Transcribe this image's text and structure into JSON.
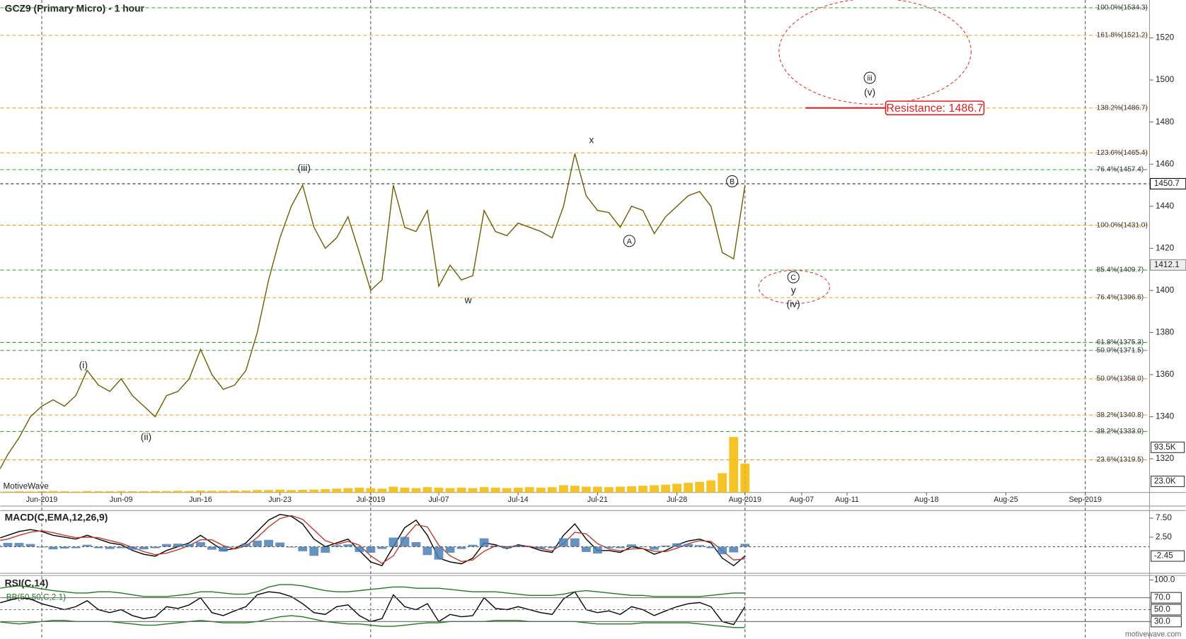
{
  "chart_data": [
    {
      "type": "line",
      "title": "GCZ9 (Primary Micro) - 1 hour",
      "categories": [
        null,
        null,
        null,
        null,
        "Jun-2019",
        null,
        null,
        null,
        null,
        null,
        null,
        "Jun-09",
        null,
        null,
        null,
        null,
        null,
        null,
        "Jun-16",
        null,
        null,
        null,
        null,
        null,
        null,
        "Jun-23",
        null,
        null,
        null,
        null,
        null,
        null,
        null,
        "Jul-2019",
        null,
        null,
        null,
        null,
        null,
        "Jul-07",
        null,
        null,
        null,
        null,
        null,
        null,
        "Jul-14",
        null,
        null,
        null,
        null,
        null,
        null,
        "Jul-21",
        null,
        null,
        null,
        null,
        null,
        null,
        "Jul-28",
        null,
        null,
        null,
        null,
        null,
        "Aug-2019",
        null,
        null,
        null,
        null,
        "Aug-07",
        null,
        null,
        null,
        "Aug-11",
        null,
        null,
        null,
        null,
        null,
        null,
        "Aug-18",
        null,
        null,
        null,
        null,
        null,
        null,
        "Aug-25",
        null,
        null,
        null,
        null,
        null,
        null,
        "Sep-2019",
        null,
        null,
        null,
        null,
        null
      ],
      "series": [
        {
          "color": "#6b5d00",
          "values": [
            1312,
            1322,
            1330,
            1340,
            1345,
            1348,
            1345,
            1350,
            1362,
            1355,
            1352,
            1358,
            1350,
            1345,
            1340,
            1350,
            1352,
            1358,
            1372,
            1360,
            1353,
            1355,
            1362,
            1380,
            1405,
            1425,
            1440,
            1450,
            1430,
            1420,
            1425,
            1435,
            1418,
            1400,
            1405,
            1450,
            1430,
            1428,
            1438,
            1402,
            1412,
            1405,
            1407,
            1438,
            1428,
            1426,
            1432,
            1430,
            1428,
            1425,
            1440,
            1465,
            1445,
            1438,
            1437,
            1430,
            1440,
            1438,
            1427,
            1435,
            1440,
            1445,
            1447,
            1440,
            1418,
            1415,
            1450,
            null,
            null,
            null,
            null,
            null,
            null,
            null,
            null,
            null,
            null,
            null,
            null,
            null,
            null,
            null,
            null,
            null,
            null,
            null,
            null,
            null,
            null,
            null,
            null,
            null,
            null,
            null,
            null,
            null,
            null,
            null,
            null,
            null,
            null,
            null
          ]
        },
        {
          "type": "bar",
          "axis": "y2",
          "color": "#f5b800",
          "values": [
            2000,
            2000,
            2500,
            2000,
            2500,
            3000,
            2500,
            2000,
            3000,
            2500,
            2500,
            3000,
            2500,
            2500,
            3000,
            3000,
            3500,
            3000,
            4000,
            3500,
            3500,
            4000,
            4000,
            5000,
            5000,
            6000,
            5000,
            5500,
            6000,
            7000,
            8000,
            9000,
            10000,
            9000,
            8000,
            12000,
            10000,
            9000,
            11000,
            10000,
            9000,
            10000,
            9000,
            11000,
            10000,
            9000,
            10000,
            11000,
            10000,
            11000,
            15000,
            14000,
            12000,
            12000,
            11000,
            12000,
            13000,
            14000,
            15000,
            16000,
            18000,
            20000,
            22000,
            25000,
            40000,
            115000,
            60000,
            null,
            null,
            null,
            null,
            null,
            null,
            null,
            null,
            null,
            null,
            null,
            null,
            null,
            null,
            null,
            null,
            null,
            null,
            null,
            null,
            null,
            null,
            null,
            null,
            null,
            null,
            null,
            null,
            null,
            null,
            null,
            null,
            null,
            null,
            null
          ]
        }
      ],
      "ylim": [
        1304,
        1538
      ],
      "yticks": [
        1320,
        1340,
        1360,
        1380,
        1400,
        1420,
        1440,
        1460,
        1480,
        1500,
        1520
      ],
      "y2lim": [
        0,
        1020000
      ],
      "y2ticks": [
        {
          "value": 23000,
          "label": "23.0K"
        },
        {
          "value": 93500,
          "label": "93.5K"
        }
      ],
      "levels": [
        {
          "label": "100.0%(1534.3)",
          "value": 1534.3,
          "color": "#2aa52a"
        },
        {
          "label": "161.8%(1521.2)",
          "value": 1521.2,
          "color": "#e8a020"
        },
        {
          "label": "138.2%(1486.7)",
          "value": 1486.7,
          "color": "#e8a020"
        },
        {
          "label": "123.6%(1465.4)",
          "value": 1465.4,
          "color": "#e8a020"
        },
        {
          "label": "76.4%(1457.4)",
          "value": 1457.4,
          "color": "#2aa52a"
        },
        {
          "label": "100.0%(1431.0)",
          "value": 1431.0,
          "color": "#e8a020"
        },
        {
          "label": "85.4%(1409.7)",
          "value": 1409.7,
          "color": "#2aa52a"
        },
        {
          "label": "76.4%(1396.6)",
          "value": 1396.6,
          "color": "#e8a020"
        },
        {
          "label": "61.8%(1375.3)",
          "value": 1375.3,
          "color": "#2aa52a"
        },
        {
          "label": "50.0%(1371.5)",
          "value": 1371.5,
          "color": "#2aa52a"
        },
        {
          "label": "50.0%(1358.0)",
          "value": 1358.0,
          "color": "#e8a020"
        },
        {
          "label": "38.2%(1340.8)",
          "value": 1340.8,
          "color": "#e8a020"
        },
        {
          "label": "38.2%(1333.0)",
          "value": 1333.0,
          "color": "#2aa52a"
        },
        {
          "label": "23.6%(1319.5)",
          "value": 1319.5,
          "color": "#e8a020"
        }
      ],
      "last_price": 1450.7,
      "prev_price": 1412.1,
      "resistance": {
        "label": "Resistance: 1486.7",
        "value": 1486.7,
        "color": "#e02020"
      },
      "annotations": [
        "(i)",
        "(ii)",
        "(iii)",
        "w",
        "x",
        "A",
        "B",
        "C",
        "y",
        "(iv)",
        "iii",
        "(v)"
      ],
      "watermark": "MotiveWave"
    },
    {
      "type": "line",
      "title": "MACD(C,EMA,12,26,9)",
      "ylim": [
        -6.8,
        9.3
      ],
      "yticks": [
        {
          "value": 7.5,
          "label": "7.50"
        },
        {
          "value": 2.5,
          "label": "2.50"
        }
      ],
      "last_value": -2.45,
      "series": [
        {
          "color": "#000000",
          "values": [
            2,
            3,
            4,
            4.5,
            4,
            3,
            2.5,
            2,
            3,
            2,
            1,
            0.5,
            -1,
            -2,
            -2.5,
            -1,
            0,
            1,
            3,
            1,
            -1,
            -0.5,
            1,
            4,
            7,
            8.5,
            8,
            6,
            2,
            0,
            1,
            2,
            -1,
            -4,
            -5,
            0,
            5,
            7,
            3,
            -3,
            -4,
            -4.5,
            -3,
            1,
            0.5,
            -0.5,
            0.5,
            0,
            -1,
            -1.5,
            3,
            6,
            2,
            -1,
            -1,
            -1.5,
            0,
            -0.5,
            -2,
            -1,
            0.5,
            1.5,
            2,
            1,
            -3,
            -5,
            -2.45
          ]
        },
        {
          "color": "#c0392b",
          "values": [
            1.5,
            2,
            3,
            3.8,
            4.2,
            3.7,
            3,
            2.4,
            2.5,
            2.4,
            1.6,
            0.9,
            -0.2,
            -1.3,
            -2.1,
            -1.7,
            -0.8,
            0.3,
            1.8,
            1.8,
            0.3,
            -0.6,
            0.2,
            2.4,
            5.2,
            7.4,
            8.2,
            7.2,
            4.4,
            1.6,
            0.6,
            1.4,
            0.4,
            -2.4,
            -4.4,
            -2.4,
            2.4,
            5.8,
            5.2,
            0.4,
            -2.4,
            -3.9,
            -3.5,
            -1.2,
            0.2,
            0,
            0.1,
            0.1,
            -0.5,
            -1.1,
            0.8,
            3.8,
            3.4,
            0.8,
            -0.6,
            -1.1,
            -0.6,
            -0.5,
            -1.2,
            -1.3,
            -0.4,
            0.8,
            1.6,
            1.4,
            -1,
            -3.5,
            -3.2
          ]
        },
        {
          "type": "bar",
          "color": "#4a7fb5",
          "values": [
            0.5,
            1,
            1,
            0.7,
            -0.2,
            -0.7,
            -0.5,
            -0.4,
            0.5,
            -0.4,
            -0.6,
            -0.4,
            -0.8,
            -0.7,
            -0.4,
            0.7,
            0.8,
            0.7,
            1.2,
            -0.8,
            -1.3,
            0.1,
            0.8,
            1.6,
            1.8,
            1.1,
            -0.2,
            -1.2,
            -2.4,
            -1.6,
            0.4,
            0.6,
            -1.4,
            -1.6,
            -0.6,
            2.4,
            2.6,
            1.2,
            -2.2,
            -3.4,
            -1.6,
            -0.6,
            0.5,
            2.2,
            0.3,
            -0.5,
            0.4,
            -0.1,
            -0.5,
            -0.4,
            2.2,
            2.2,
            -1.4,
            -1.8,
            -0.4,
            -0.4,
            0.6,
            0,
            -0.8,
            0.3,
            0.9,
            0.7,
            0.4,
            -0.4,
            -2,
            -1.5,
            0.75
          ]
        }
      ]
    },
    {
      "type": "line",
      "title": "RSI(C,14)",
      "subtitle": "BB(50,50,C,2.1)",
      "ylim": [
        2,
        106
      ],
      "yticks": [
        {
          "value": 100,
          "label": "100.0"
        },
        {
          "value": 70,
          "label": "70.0"
        },
        {
          "value": 50,
          "label": "50.0"
        },
        {
          "value": 30,
          "label": "30.0"
        }
      ],
      "series": [
        {
          "color": "#000000",
          "values": [
            60,
            65,
            70,
            68,
            60,
            55,
            50,
            55,
            65,
            50,
            45,
            50,
            40,
            35,
            38,
            55,
            52,
            58,
            70,
            45,
            40,
            48,
            55,
            75,
            80,
            78,
            72,
            60,
            45,
            42,
            55,
            58,
            40,
            30,
            35,
            75,
            55,
            50,
            60,
            30,
            42,
            38,
            40,
            70,
            52,
            50,
            55,
            50,
            45,
            42,
            68,
            80,
            50,
            45,
            48,
            42,
            55,
            50,
            40,
            48,
            55,
            60,
            62,
            55,
            30,
            25,
            55
          ]
        },
        {
          "color": "#1f7a1f",
          "values": [
            85,
            88,
            90,
            88,
            85,
            82,
            80,
            78,
            78,
            80,
            80,
            78,
            75,
            72,
            72,
            72,
            74,
            76,
            80,
            80,
            78,
            76,
            76,
            80,
            88,
            92,
            92,
            90,
            86,
            82,
            80,
            80,
            82,
            84,
            86,
            88,
            88,
            86,
            86,
            86,
            84,
            82,
            80,
            80,
            80,
            78,
            76,
            74,
            74,
            74,
            76,
            80,
            82,
            80,
            78,
            76,
            74,
            74,
            72,
            72,
            72,
            72,
            72,
            74,
            76,
            78,
            78
          ]
        },
        {
          "color": "#1f7a1f",
          "values": [
            30,
            28,
            26,
            28,
            30,
            32,
            32,
            30,
            30,
            30,
            30,
            28,
            26,
            24,
            24,
            26,
            28,
            30,
            32,
            30,
            28,
            28,
            28,
            30,
            34,
            38,
            40,
            38,
            34,
            30,
            28,
            26,
            26,
            24,
            22,
            22,
            24,
            26,
            28,
            28,
            30,
            30,
            30,
            30,
            32,
            32,
            32,
            30,
            30,
            30,
            30,
            30,
            28,
            26,
            26,
            26,
            26,
            28,
            28,
            28,
            28,
            28,
            26,
            24,
            22,
            20,
            20
          ]
        }
      ],
      "watermark": "motivewave.com"
    }
  ]
}
